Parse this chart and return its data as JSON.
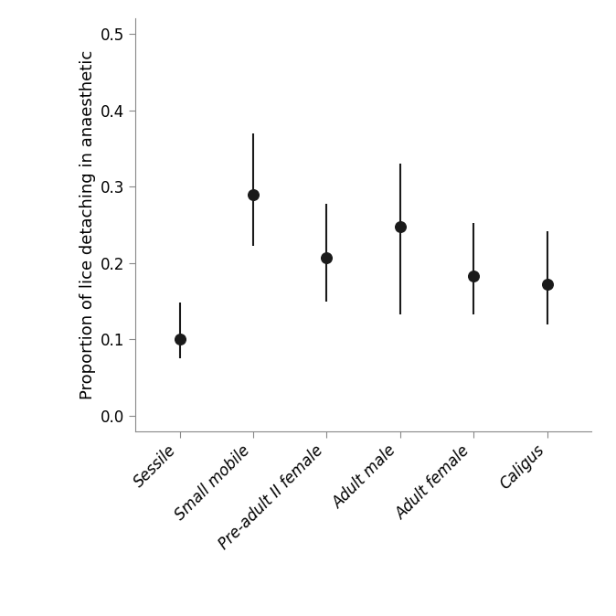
{
  "categories": [
    "Sessile",
    "Small mobile",
    "Pre-adult II female",
    "Adult male",
    "Adult female",
    "Caligus"
  ],
  "means": [
    0.1,
    0.29,
    0.207,
    0.248,
    0.183,
    0.172
  ],
  "ci_lower": [
    0.075,
    0.222,
    0.15,
    0.133,
    0.133,
    0.12
  ],
  "ci_upper": [
    0.148,
    0.37,
    0.278,
    0.33,
    0.253,
    0.242
  ],
  "ylabel": "Proportion of lice detaching in anaesthetic",
  "ylim": [
    -0.02,
    0.52
  ],
  "yticks": [
    0.0,
    0.1,
    0.2,
    0.3,
    0.4,
    0.5
  ],
  "point_color": "#1a1a1a",
  "point_size": 70,
  "line_color": "#1a1a1a",
  "line_width": 1.5,
  "background_color": "#ffffff",
  "label_fontsize": 13,
  "tick_fontsize": 12,
  "spine_color": "#888888"
}
